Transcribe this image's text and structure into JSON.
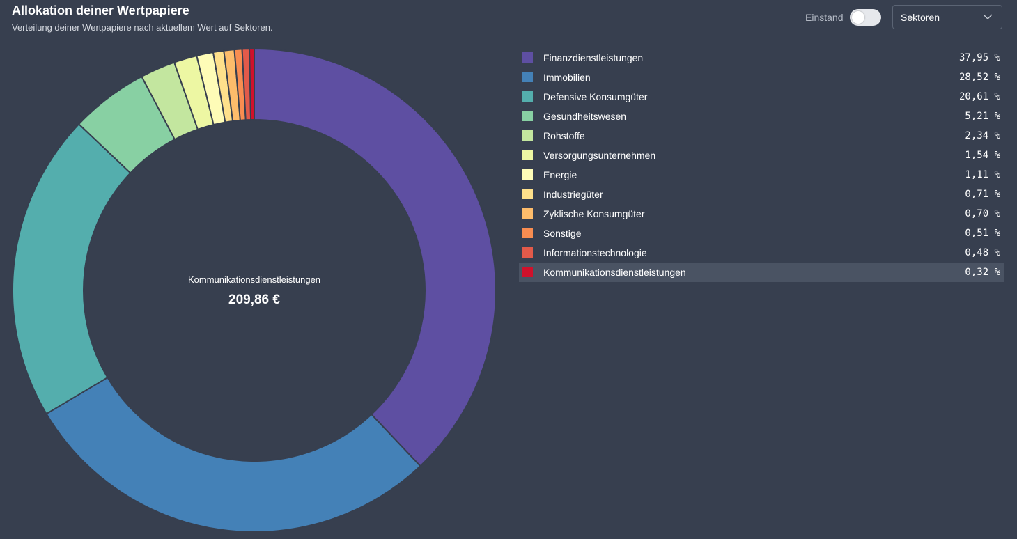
{
  "header": {
    "title": "Allokation deiner Wertpapiere",
    "subtitle": "Verteilung deiner Wertpapiere nach aktuellem Wert auf Sektoren."
  },
  "controls": {
    "einstand_label": "Einstand",
    "einstand_on": false,
    "grouping_value": "Sektoren"
  },
  "center": {
    "label": "Kommunikationsdienstleistungen",
    "value": "209,86 €"
  },
  "chart_data": {
    "type": "pie",
    "donut": true,
    "categories": [
      "Finanzdienstleistungen",
      "Immobilien",
      "Defensive Konsumgüter",
      "Gesundheitswesen",
      "Rohstoffe",
      "Versorgungsunternehmen",
      "Energie",
      "Industriegüter",
      "Zyklische Konsumgüter",
      "Sonstige",
      "Informationstechnologie",
      "Kommunikationsdienstleistungen"
    ],
    "values": [
      37.95,
      28.52,
      20.61,
      5.21,
      2.34,
      1.54,
      1.11,
      0.71,
      0.7,
      0.51,
      0.48,
      0.32
    ],
    "labels": [
      "37,95 %",
      "28,52 %",
      "20,61 %",
      "5,21 %",
      "2,34 %",
      "1,54 %",
      "1,11 %",
      "0,71 %",
      "0,70 %",
      "0,51 %",
      "0,48 %",
      "0,32 %"
    ],
    "colors": [
      "#5e4fa2",
      "#4481b7",
      "#54aead",
      "#88d0a3",
      "#c3e69f",
      "#edf7a3",
      "#fefcb7",
      "#fee08b",
      "#fdbc6b",
      "#f88d51",
      "#e25a4a",
      "#d0112b"
    ],
    "legend_position": "right",
    "highlighted_index": 11
  }
}
